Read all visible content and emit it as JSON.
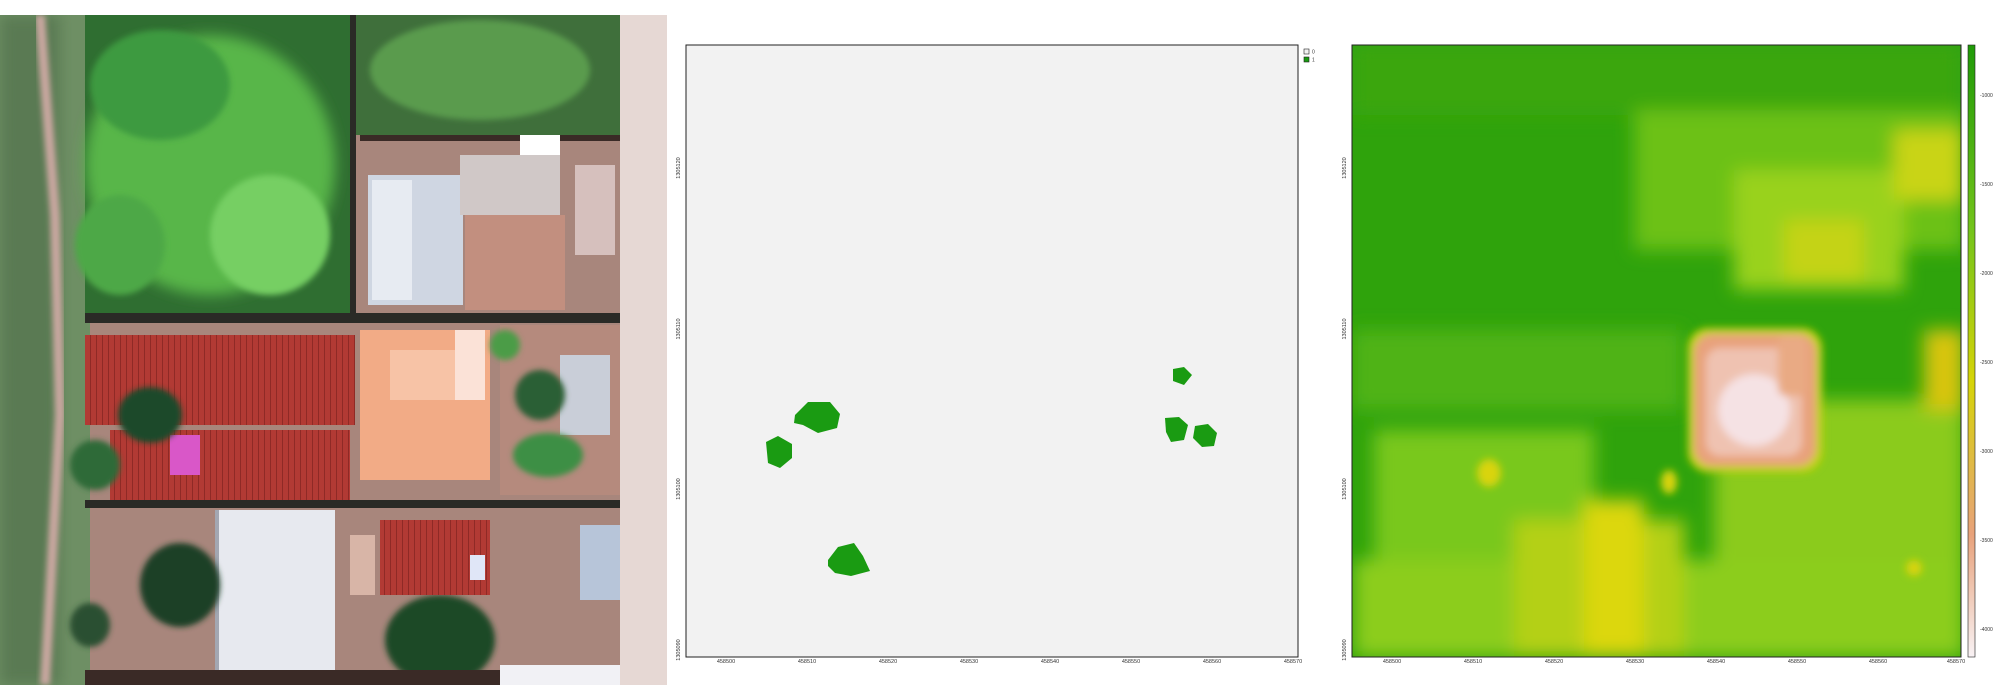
{
  "aerial_image": {
    "colors": {
      "vegetation": "#3f9a3a",
      "vegetation_light": "#64c45a",
      "soil": "#b58375",
      "red_roof": "#b23a34",
      "pale_roof": "#d9dde6",
      "orange_roof": "#f0a581",
      "tree_shadow": "#1d3a27"
    }
  },
  "tree_mask_map": {
    "colors": {
      "background": "#f2f2f2",
      "tree": "#1a9b12",
      "frame": "#222222"
    },
    "legend": {
      "items": [
        {
          "label": "0",
          "color": "#f2f2f2"
        },
        {
          "label": "1",
          "color": "#1a9b12"
        }
      ]
    },
    "x_ticks": [
      "458500",
      "458510",
      "458520",
      "458530",
      "458540",
      "458550",
      "458560",
      "458570"
    ],
    "y_ticks": [
      "1305090",
      "1305100",
      "1305110",
      "1305120"
    ]
  },
  "elevation_map": {
    "colors": {
      "green": "#2fa30c",
      "light_green": "#8fd01e",
      "yellow": "#d9d407",
      "peach": "#e9a57e",
      "pale": "#f3e8eb",
      "frame": "#222222"
    },
    "colorbar": {
      "ticks": [
        "-1000",
        "-1500",
        "-2000",
        "-2500",
        "-3000",
        "-3500",
        "-4000"
      ]
    },
    "x_ticks": [
      "458500",
      "458510",
      "458520",
      "458530",
      "458540",
      "458550",
      "458560",
      "458570"
    ],
    "y_ticks": [
      "1305090",
      "1305100",
      "1305110",
      "1305120"
    ]
  }
}
